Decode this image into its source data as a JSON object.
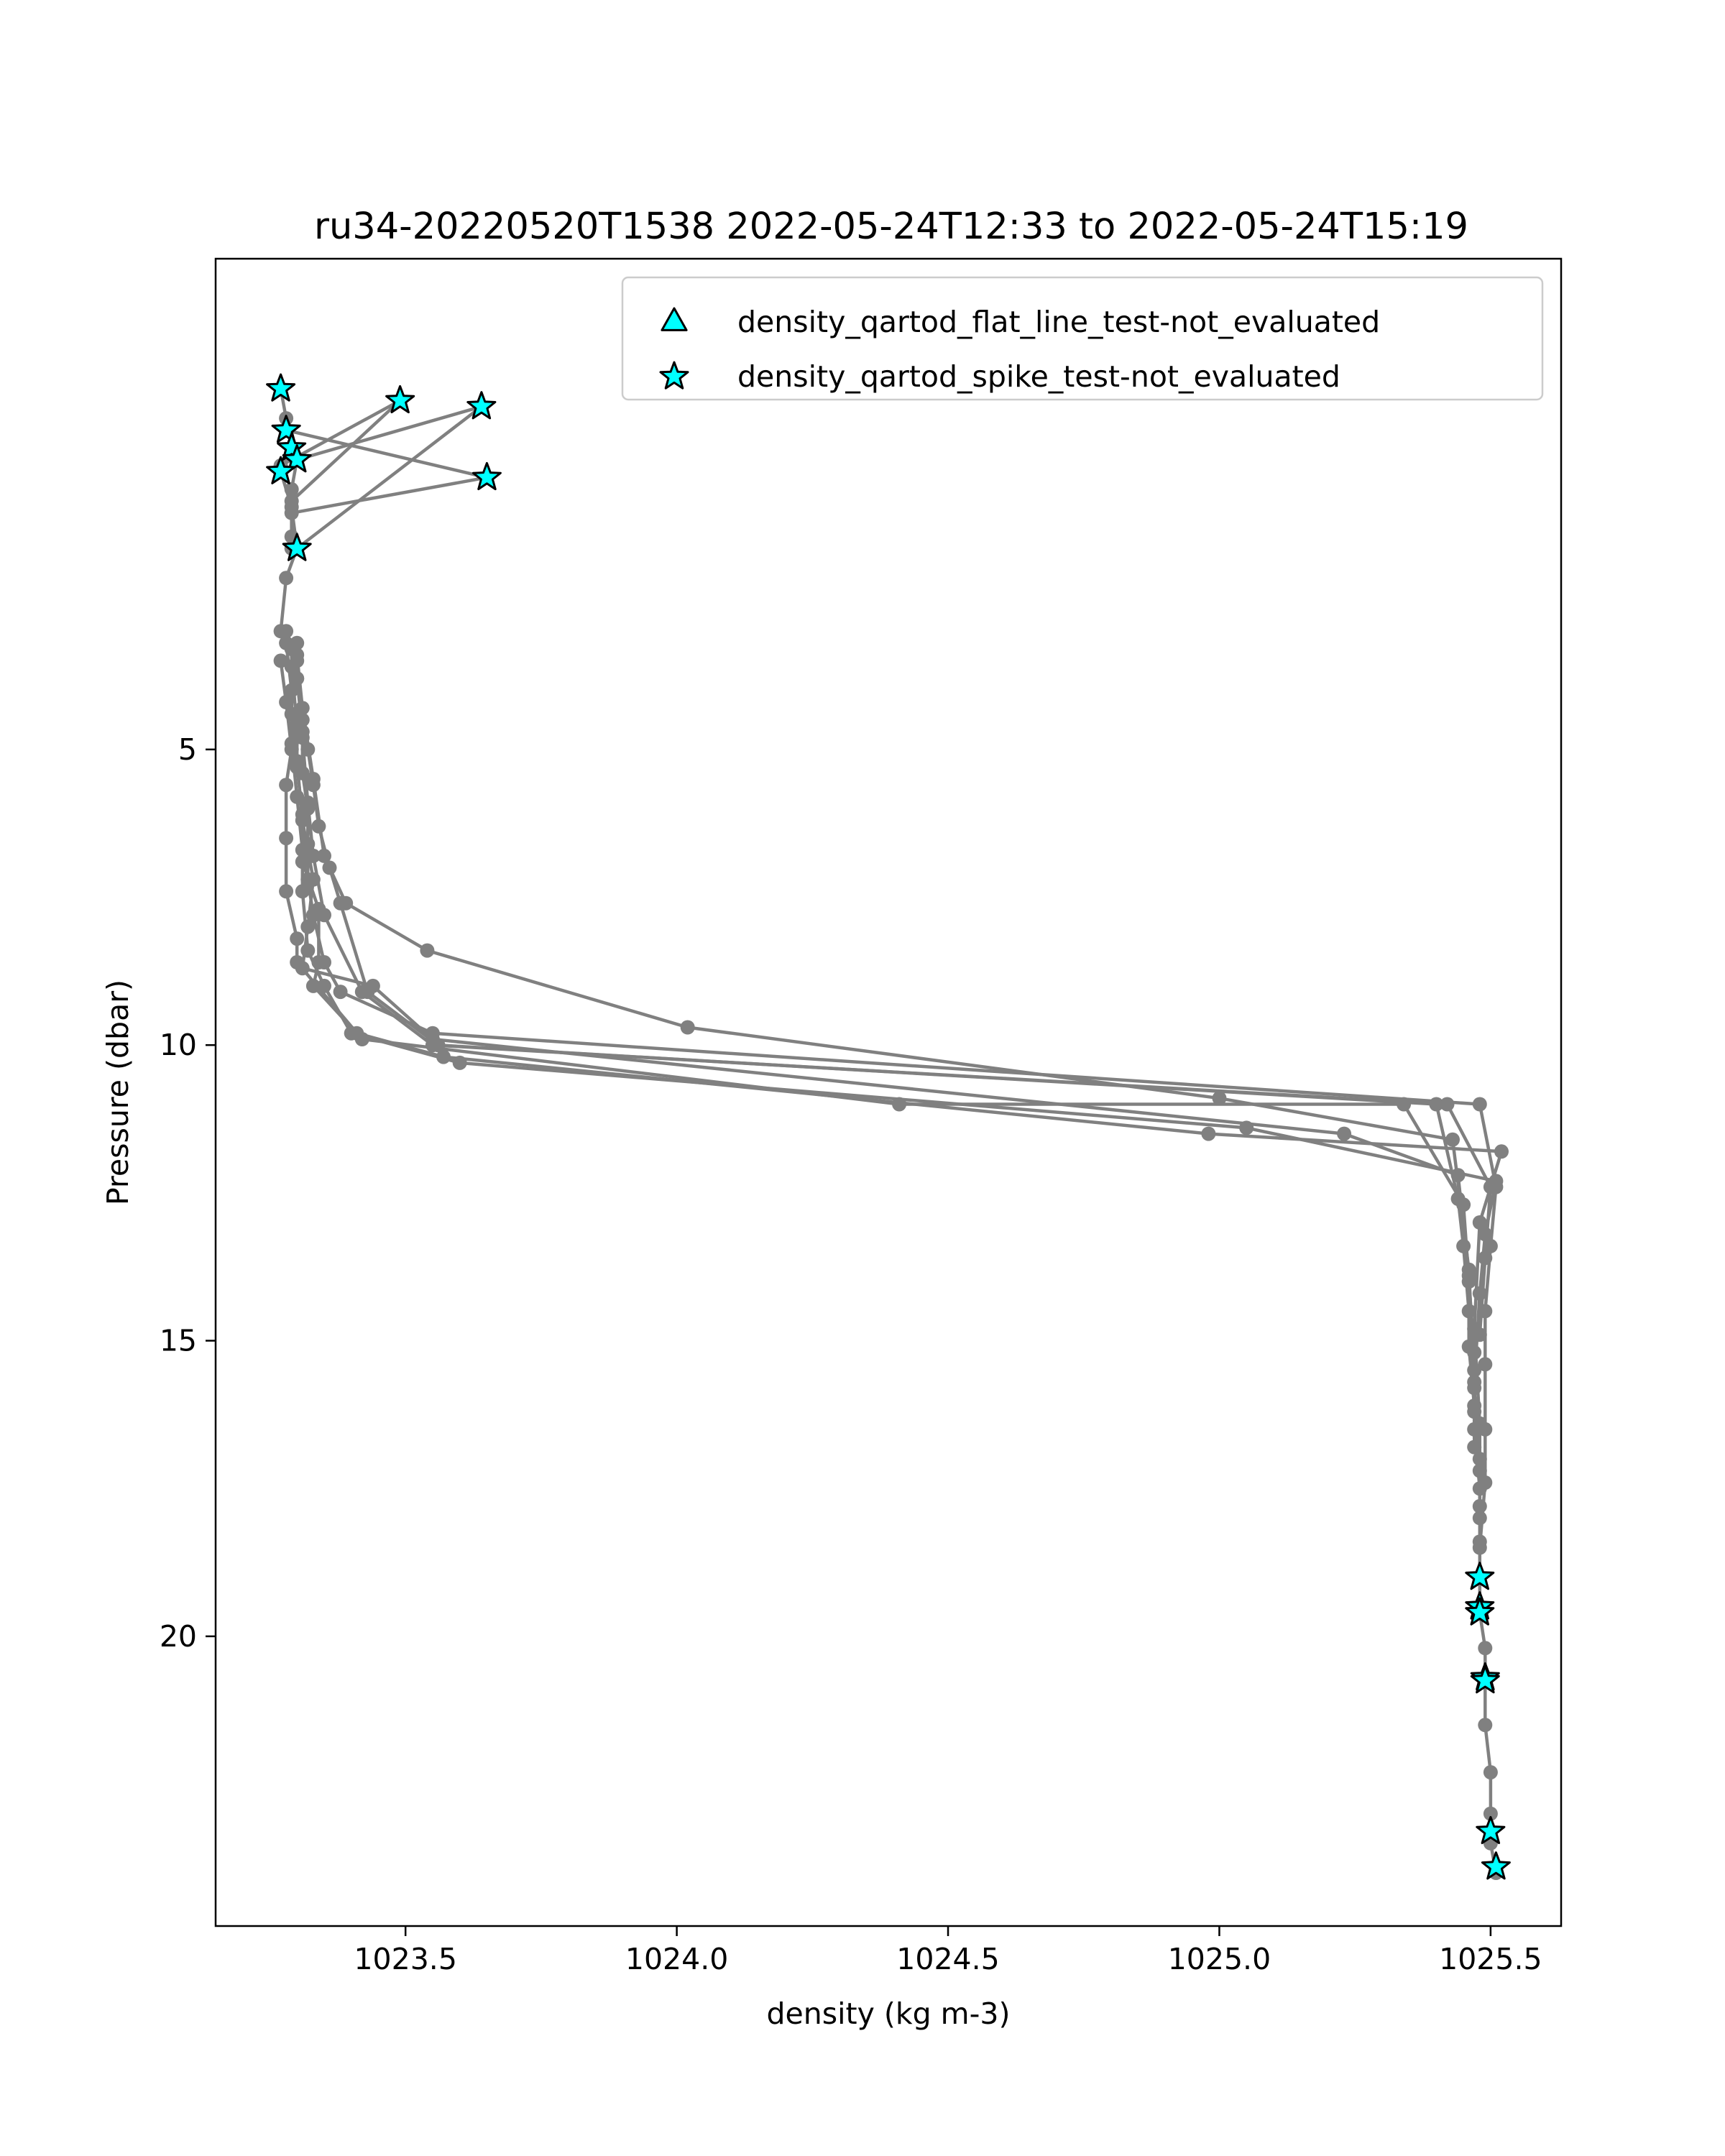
{
  "chart_data": {
    "type": "line",
    "title": "ru34-20220520T1538 2022-05-24T12:33 to 2022-05-24T15:19",
    "xlabel": "density (kg m-3)",
    "ylabel": "Pressure (dbar)",
    "xlim": [
      1023.15,
      1025.63
    ],
    "ylim": [
      24.9,
      -3.3
    ],
    "y_inverted": true,
    "xticks": [
      1023.5,
      1024.0,
      1024.5,
      1025.0,
      1025.5
    ],
    "xtick_labels": [
      "1023.5",
      "1024.0",
      "1024.5",
      "1025.0",
      "1025.5"
    ],
    "yticks": [
      5,
      10,
      15,
      20
    ],
    "ytick_labels": [
      "5",
      "10",
      "15",
      "20"
    ],
    "grid": false,
    "legend_position": "top-right",
    "colors": {
      "profile": "#808080",
      "flag_fill": "#00ffff",
      "flag_edge": "#000000"
    },
    "legend": [
      {
        "label": "density_qartod_flat_line_test-not_evaluated",
        "marker": "triangle"
      },
      {
        "label": "density_qartod_spike_test-not_evaluated",
        "marker": "star"
      }
    ],
    "profiles": [
      {
        "points": [
          [
            1023.3,
            3.2
          ],
          [
            1023.3,
            3.8
          ],
          [
            1023.31,
            4.5
          ],
          [
            1023.32,
            5.0
          ],
          [
            1023.33,
            5.6
          ],
          [
            1023.34,
            6.3
          ],
          [
            1023.36,
            7.0
          ],
          [
            1023.38,
            7.6
          ],
          [
            1023.43,
            9.1
          ],
          [
            1023.56,
            10.0
          ],
          [
            1025.4,
            11.0
          ],
          [
            1025.44,
            12.6
          ],
          [
            1025.45,
            13.4
          ],
          [
            1025.46,
            14.5
          ],
          [
            1025.47,
            15.5
          ],
          [
            1025.47,
            16.5
          ],
          [
            1025.48,
            17.5
          ],
          [
            1025.48,
            18.4
          ],
          [
            1025.48,
            19.0
          ],
          [
            1025.48,
            19.6
          ],
          [
            1025.49,
            20.2
          ],
          [
            1025.49,
            20.7
          ],
          [
            1025.49,
            21.5
          ],
          [
            1025.5,
            22.3
          ],
          [
            1025.5,
            23.0
          ],
          [
            1025.5,
            23.5
          ],
          [
            1025.51,
            24.0
          ]
        ]
      },
      {
        "points": [
          [
            1023.27,
            3.5
          ],
          [
            1023.28,
            4.2
          ],
          [
            1023.29,
            5.0
          ],
          [
            1023.28,
            5.6
          ],
          [
            1023.28,
            6.5
          ],
          [
            1023.28,
            7.4
          ],
          [
            1023.3,
            8.2
          ],
          [
            1023.3,
            8.6
          ],
          [
            1023.42,
            9.9
          ],
          [
            1024.41,
            11.0
          ],
          [
            1025.34,
            11.0
          ],
          [
            1025.45,
            12.7
          ],
          [
            1025.46,
            14.0
          ],
          [
            1025.47,
            15.2
          ],
          [
            1025.47,
            16.2
          ],
          [
            1025.48,
            17.2
          ],
          [
            1025.48,
            18.0
          ]
        ]
      },
      {
        "points": [
          [
            1023.28,
            3.0
          ],
          [
            1023.3,
            3.8
          ],
          [
            1023.31,
            4.7
          ],
          [
            1023.31,
            5.4
          ],
          [
            1023.32,
            6.0
          ],
          [
            1023.32,
            6.6
          ],
          [
            1023.32,
            7.2
          ],
          [
            1023.33,
            7.8
          ],
          [
            1023.35,
            8.6
          ],
          [
            1023.38,
            9.1
          ],
          [
            1023.55,
            9.8
          ],
          [
            1025.48,
            11.0
          ],
          [
            1025.51,
            12.4
          ],
          [
            1025.5,
            13.4
          ],
          [
            1025.49,
            14.5
          ],
          [
            1025.49,
            15.4
          ],
          [
            1025.49,
            16.5
          ],
          [
            1025.49,
            17.4
          ],
          [
            1025.48,
            18.5
          ]
        ]
      },
      {
        "points": [
          [
            1023.3,
            3.4
          ],
          [
            1023.31,
            4.3
          ],
          [
            1023.33,
            5.5
          ],
          [
            1023.35,
            6.8
          ],
          [
            1023.39,
            7.6
          ],
          [
            1023.54,
            8.4
          ],
          [
            1024.02,
            9.7
          ],
          [
            1025.0,
            10.9
          ],
          [
            1025.43,
            11.6
          ],
          [
            1025.46,
            13.8
          ],
          [
            1025.47,
            15.8
          ],
          [
            1025.48,
            17.0
          ]
        ]
      },
      {
        "points": [
          [
            1023.29,
            3.6
          ],
          [
            1023.3,
            4.6
          ],
          [
            1023.3,
            5.3
          ],
          [
            1023.31,
            6.1
          ],
          [
            1023.31,
            6.9
          ],
          [
            1023.34,
            7.7
          ],
          [
            1023.34,
            8.6
          ],
          [
            1023.33,
            9.0
          ],
          [
            1023.41,
            9.8
          ],
          [
            1023.57,
            10.2
          ],
          [
            1024.98,
            11.5
          ],
          [
            1025.52,
            11.8
          ],
          [
            1025.48,
            13.0
          ],
          [
            1025.47,
            14.8
          ],
          [
            1025.48,
            16.4
          ],
          [
            1025.48,
            17.8
          ]
        ]
      },
      {
        "points": [
          [
            1023.28,
            3.2
          ],
          [
            1023.29,
            4.0
          ],
          [
            1023.29,
            4.9
          ],
          [
            1023.3,
            5.8
          ],
          [
            1023.31,
            6.7
          ],
          [
            1023.31,
            7.4
          ],
          [
            1023.32,
            8.4
          ],
          [
            1023.35,
            9.0
          ],
          [
            1023.4,
            9.8
          ],
          [
            1023.6,
            10.3
          ],
          [
            1025.05,
            11.4
          ],
          [
            1025.51,
            12.3
          ],
          [
            1025.49,
            13.2
          ],
          [
            1025.48,
            14.2
          ],
          [
            1025.47,
            15.7
          ],
          [
            1025.47,
            16.8
          ]
        ]
      },
      {
        "points": [
          [
            1023.29,
            3.3
          ],
          [
            1023.29,
            4.4
          ],
          [
            1023.3,
            5.2
          ],
          [
            1023.31,
            6.2
          ],
          [
            1023.33,
            7.2
          ],
          [
            1023.32,
            8.0
          ],
          [
            1023.31,
            8.7
          ],
          [
            1023.44,
            9.0
          ],
          [
            1023.55,
            9.9
          ],
          [
            1025.23,
            11.5
          ],
          [
            1025.44,
            12.2
          ],
          [
            1025.46,
            13.9
          ],
          [
            1025.46,
            15.1
          ],
          [
            1025.47,
            16.1
          ]
        ]
      },
      {
        "points": [
          [
            1023.3,
            3.5
          ],
          [
            1023.31,
            4.8
          ],
          [
            1023.32,
            5.9
          ],
          [
            1023.33,
            6.8
          ],
          [
            1023.35,
            7.8
          ],
          [
            1023.42,
            9.1
          ],
          [
            1023.55,
            10.0
          ],
          [
            1025.42,
            11.0
          ],
          [
            1025.5,
            12.4
          ],
          [
            1025.49,
            13.6
          ],
          [
            1025.48,
            14.9
          ]
        ]
      },
      {
        "points": [
          [
            1023.27,
            -1.1
          ],
          [
            1023.28,
            -0.6
          ],
          [
            1023.29,
            -0.1
          ],
          [
            1023.27,
            0.3
          ],
          [
            1023.29,
            0.9
          ],
          [
            1023.3,
            1.6
          ],
          [
            1023.28,
            2.1
          ],
          [
            1023.27,
            3.0
          ]
        ]
      },
      {
        "points": [
          [
            1023.28,
            -0.4
          ],
          [
            1023.65,
            0.4
          ],
          [
            1023.29,
            1.0
          ],
          [
            1023.29,
            1.6
          ]
        ]
      },
      {
        "points": [
          [
            1023.27,
            0.2
          ],
          [
            1023.49,
            -0.9
          ],
          [
            1023.29,
            0.8
          ],
          [
            1023.29,
            1.4
          ]
        ]
      },
      {
        "points": [
          [
            1023.3,
            1.6
          ],
          [
            1023.64,
            -0.8
          ],
          [
            1023.3,
            0.1
          ],
          [
            1023.29,
            0.6
          ]
        ]
      }
    ],
    "series": [
      {
        "name": "density_qartod_flat_line_test-not_evaluated",
        "marker": "triangle",
        "points": []
      },
      {
        "name": "density_qartod_spike_test-not_evaluated",
        "marker": "star",
        "points": [
          [
            1023.27,
            -1.1
          ],
          [
            1023.28,
            -0.4
          ],
          [
            1023.29,
            -0.1
          ],
          [
            1023.3,
            0.1
          ],
          [
            1023.27,
            0.3
          ],
          [
            1023.3,
            1.6
          ],
          [
            1023.49,
            -0.9
          ],
          [
            1023.64,
            -0.8
          ],
          [
            1023.65,
            0.4
          ],
          [
            1025.48,
            19.0
          ],
          [
            1025.48,
            19.5
          ],
          [
            1025.48,
            19.6
          ],
          [
            1025.49,
            20.7
          ],
          [
            1025.49,
            20.75
          ],
          [
            1025.5,
            23.3
          ],
          [
            1025.51,
            23.9
          ]
        ]
      }
    ]
  }
}
